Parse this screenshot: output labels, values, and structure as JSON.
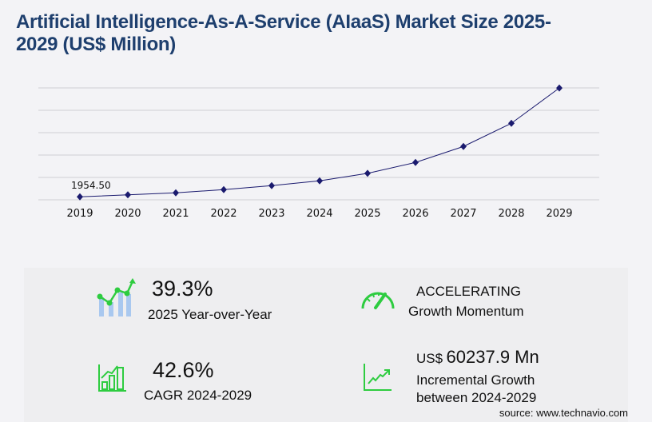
{
  "title": "Artificial Intelligence-As-A-Service (AIaaS) Market Size 2025-2029 (US$ Million)",
  "chart_data": {
    "type": "line",
    "categories": [
      "2019",
      "2020",
      "2021",
      "2022",
      "2023",
      "2024",
      "2025",
      "2026",
      "2027",
      "2028",
      "2029"
    ],
    "series": [
      {
        "values": [
          1954.5,
          3250,
          4550,
          6630,
          9220,
          12340,
          17190,
          24270,
          34650,
          49700,
          72578
        ]
      }
    ],
    "data_labels": [
      {
        "category": "2019",
        "text": "1954.50"
      }
    ],
    "ylim": [
      0,
      72660
    ],
    "grid": true,
    "y_tick_labels_shown": false,
    "line_color": "#1a1a6e",
    "marker": "diamond"
  },
  "stats": {
    "yoy": {
      "value": "39.3%",
      "label": "2025 Year-over-Year"
    },
    "momentum": {
      "value": "ACCELERATING",
      "label": "Growth Momentum"
    },
    "cagr": {
      "value": "42.6%",
      "label": "CAGR 2024-2029"
    },
    "incremental": {
      "prefix": "US$",
      "value": "60237.9 Mn",
      "label1": "Incremental Growth",
      "label2": "between 2024-2029"
    }
  },
  "icons": {
    "yoy": "growth-chart-icon",
    "momentum": "speedometer-icon",
    "cagr": "bar-chart-icon",
    "incremental": "trend-line-icon"
  },
  "colors": {
    "title": "#1e3f6e",
    "accent_green": "#2ecc40",
    "light_blue": "#a9c8ef"
  },
  "source": "source: www.technavio.com"
}
